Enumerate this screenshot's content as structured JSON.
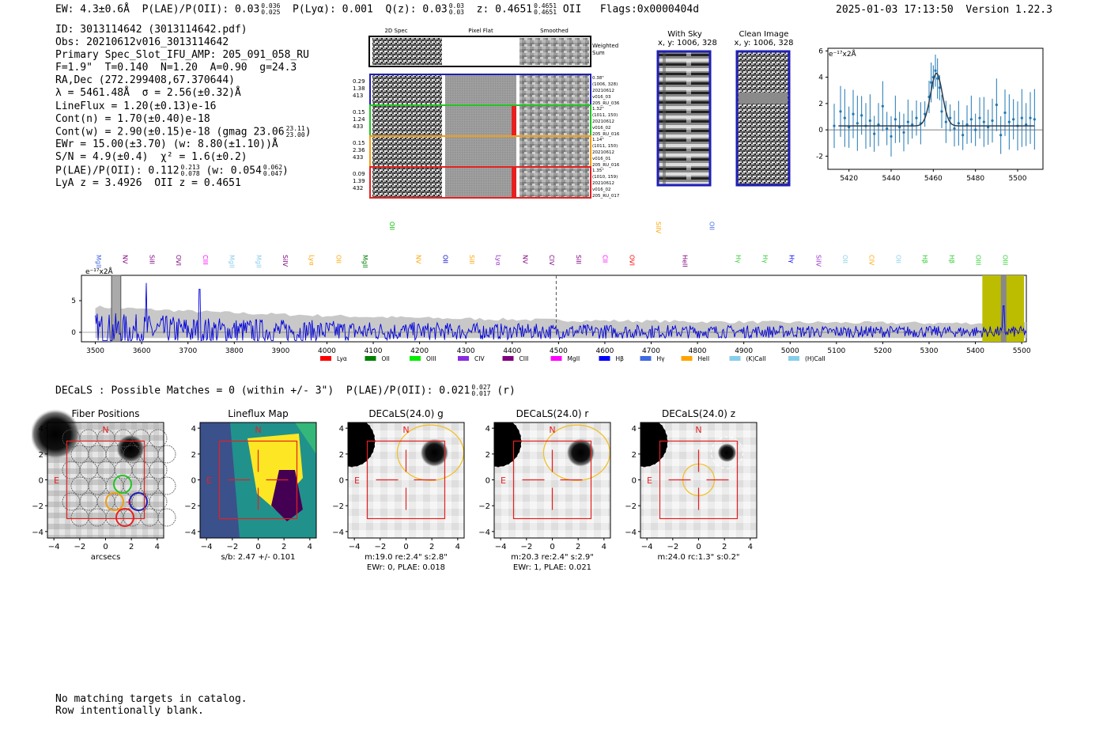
{
  "header": {
    "ew": "EW: 4.3±0.6Å",
    "plae_label": "P(LAE)/P(OII): 0.03",
    "plae_sup": "0.036",
    "plae_sub": "0.025",
    "plya": "P(Lyα): 0.001",
    "qz_label": "Q(z): 0.03",
    "qz_sup": "0.03",
    "qz_sub": "0.03",
    "z_label": "z: 0.4651",
    "z_sup": "0.4651",
    "z_sub": "0.4651",
    "z_line": "OII",
    "flags": "Flags:0x0000404d",
    "timestamp": "2025-01-03 17:13:50",
    "version": "Version 1.22.3"
  },
  "info": {
    "id": "ID: 3013114642 (3013114642.pdf)",
    "obs": "Obs: 20210612v016_3013114642",
    "primary": "Primary Spec_Slot_IFU_AMP: 205_091_058_RU",
    "fwhm": "F=1.9\"  T=0.140  N=1.20  A=0.90  g=24.3",
    "radec": "RA,Dec (272.299408,67.370644)",
    "lambda": "λ = 5461.48Å  σ = 2.56(±0.32)Å",
    "lineflux": "LineFlux = 1.20(±0.13)e-16",
    "contn": "Cont(n) = 1.70(±0.40)e-18",
    "contw": "Cont(w) = 2.90(±0.15)e-18 (gmag 23.06",
    "contw_sup": "23.11",
    "contw_sub": "23.00",
    "contw_end": ")",
    "ewr": "EWr = 15.00(±3.70) (w: 8.80(±1.10))Å",
    "sn": "S/N = 4.9(±0.4)  χ² = 1.6(±0.2)",
    "plae": "P(LAE)/P(OII): 0.112",
    "plae_sup": "0.213",
    "plae_sub": "0.078",
    "plae_w": "(w: 0.054",
    "plae_w_sup": "0.062",
    "plae_w_sub": "0.047",
    "plae_w_end": ")",
    "lya": "LyA z = 3.4926  OII z = 0.4651"
  },
  "cutouts": {
    "col_2d": "2D Spec",
    "col_flat": "Pixel Flat",
    "col_smooth": "Smoothed",
    "weighted": [
      "Weighted",
      "Sum"
    ],
    "rows": [
      {
        "left": [
          "0.29",
          "1.38",
          "413"
        ],
        "right": [
          "0.38\"",
          "(1006, 328)",
          "20210612",
          "v016_03",
          "205_RU_036"
        ],
        "color": "#1f1fb4"
      },
      {
        "left": [
          "0.15",
          "1.24",
          "433"
        ],
        "right": [
          "1.32\"",
          "(1011, 150)",
          "20210612",
          "v016_02",
          "205_RU_016"
        ],
        "color": "#22c422"
      },
      {
        "left": [
          "0.15",
          "2.36",
          "433"
        ],
        "right": [
          "1.14\"",
          "(1011, 150)",
          "20210612",
          "v016_01",
          "205_RU_016"
        ],
        "color": "#f39c12"
      },
      {
        "left": [
          "0.09",
          "1.39",
          "432"
        ],
        "right": [
          "1.35\"",
          "(1010, 159)",
          "20210612",
          "v016_02",
          "205_RU_017"
        ],
        "color": "#e62020"
      }
    ]
  },
  "sky": {
    "with_sky": "With Sky",
    "with_sky_xy": "x, y: 1006, 328",
    "clean": "Clean Image",
    "clean_xy": "x, y: 1006, 328"
  },
  "zoom_plot": {
    "ylabel": "e⁻¹⁷x2Å",
    "yticks": [
      "6",
      "4",
      "2",
      "0",
      "-2"
    ],
    "xticks": [
      "5420",
      "5440",
      "5460",
      "5480",
      "5500"
    ]
  },
  "full_spectrum": {
    "ylabel": "e⁻¹⁷x2Å",
    "yticks": [
      "5",
      "0"
    ],
    "xticks": [
      "3500",
      "3600",
      "3700",
      "3800",
      "3900",
      "4000",
      "4100",
      "4200",
      "4300",
      "4400",
      "4500",
      "4600",
      "4700",
      "4800",
      "4900",
      "5000",
      "5100",
      "5200",
      "5300",
      "5400",
      "5500"
    ],
    "line_labels": [
      {
        "text": "MgII",
        "color": "#4169e1"
      },
      {
        "text": "NV",
        "color": "#800080"
      },
      {
        "text": "SiII",
        "color": "#800080"
      },
      {
        "text": "OVI",
        "color": "#800080"
      },
      {
        "text": "CIII",
        "color": "#ff00ff"
      },
      {
        "text": "MgII",
        "color": "#87ceeb"
      },
      {
        "text": "MgII",
        "color": "#87ceeb"
      },
      {
        "text": "SiIV",
        "color": "#800080"
      },
      {
        "text": "Lyα",
        "color": "#ffa500"
      },
      {
        "text": "OII",
        "color": "#ffa500"
      },
      {
        "text": "MgII",
        "color": "#008000"
      },
      {
        "text": "OII",
        "color": "#00c000"
      },
      {
        "text": "NV",
        "color": "#ffa500"
      },
      {
        "text": "OII",
        "color": "#0000cd"
      },
      {
        "text": "SiII",
        "color": "#ffa500"
      },
      {
        "text": "Lyα",
        "color": "#9932cc"
      },
      {
        "text": "NV",
        "color": "#800080"
      },
      {
        "text": "CIV",
        "color": "#800080"
      },
      {
        "text": "SiII",
        "color": "#800080"
      },
      {
        "text": "CII",
        "color": "#ff00ff"
      },
      {
        "text": "OVI",
        "color": "#ff0000"
      },
      {
        "text": "SiIV",
        "color": "#ffa500"
      },
      {
        "text": "HeII",
        "color": "#800080"
      },
      {
        "text": "OII",
        "color": "#4169e1"
      },
      {
        "text": "Hγ",
        "color": "#32cd32"
      },
      {
        "text": "Hγ",
        "color": "#32cd32"
      },
      {
        "text": "Hγ",
        "color": "#0000ff"
      },
      {
        "text": "SiIV",
        "color": "#9932cc"
      },
      {
        "text": "OII",
        "color": "#87ceeb"
      },
      {
        "text": "CIV",
        "color": "#ffa500"
      },
      {
        "text": "OII",
        "color": "#87ceeb"
      },
      {
        "text": "Hβ",
        "color": "#32cd32"
      },
      {
        "text": "Hβ",
        "color": "#32cd32"
      },
      {
        "text": "OIII",
        "color": "#32cd32"
      },
      {
        "text": "OIII",
        "color": "#32cd32"
      }
    ],
    "legend": [
      {
        "text": "Lyα",
        "color": "#ff0000"
      },
      {
        "text": "OII",
        "color": "#008000"
      },
      {
        "text": "OIII",
        "color": "#00ee00"
      },
      {
        "text": "CIV",
        "color": "#8a2be2"
      },
      {
        "text": "CIII",
        "color": "#800080"
      },
      {
        "text": "MgII",
        "color": "#ff00ff"
      },
      {
        "text": "Hβ",
        "color": "#0000ff"
      },
      {
        "text": "Hγ",
        "color": "#4169e1"
      },
      {
        "text": "HeII",
        "color": "#ffa500"
      },
      {
        "text": "(K)CaII",
        "color": "#87ceeb"
      },
      {
        "text": "(H)CaII",
        "color": "#87ceeb"
      }
    ]
  },
  "decals": {
    "title": "DECaLS : Possible Matches = 0 (within +/- 3\")  P(LAE)/P(OII): 0.021",
    "sup": "0.027",
    "sub": "0.017",
    "band": "(r)",
    "panels": [
      {
        "title": "Fiber Positions",
        "cap1": "arcsecs",
        "cap2": ""
      },
      {
        "title": "Lineflux Map",
        "cap1": "s/b: 2.47 +/- 0.101",
        "cap2": ""
      },
      {
        "title": "DECaLS(24.0) g",
        "cap1": "m:19.0  re:2.4\"  s:2.8\"",
        "cap2": "EWr: 0, PLAE: 0.018"
      },
      {
        "title": "DECaLS(24.0) r",
        "cap1": "m:20.3  re:2.4\"  s:2.9\"",
        "cap2": "EWr: 1, PLAE: 0.021"
      },
      {
        "title": "DECaLS(24.0) z",
        "cap1": "m:24.0 rc:1.3\"  s:0.2\"",
        "cap2": ""
      }
    ],
    "yticks": [
      "4",
      "2",
      "0",
      "−2",
      "−4"
    ],
    "xticks": [
      "−4",
      "−2",
      "0",
      "2",
      "4"
    ],
    "north": "N",
    "east": "E"
  },
  "footer": {
    "line1": "No matching targets in catalog.",
    "line2": "Row intentionally blank."
  },
  "chart_data": [
    {
      "type": "scatter",
      "title": "",
      "xlabel": "",
      "ylabel": "e-17x2Å",
      "xlim": [
        5410,
        5512
      ],
      "ylim": [
        -3,
        6.2
      ],
      "x": [
        5413,
        5416,
        5418,
        5420,
        5422,
        5424,
        5426,
        5428,
        5430,
        5432,
        5434,
        5436,
        5438,
        5440,
        5442,
        5444,
        5446,
        5448,
        5450,
        5452,
        5454,
        5456,
        5458,
        5459,
        5460,
        5461,
        5462,
        5463,
        5464,
        5466,
        5468,
        5470,
        5472,
        5474,
        5476,
        5478,
        5480,
        5482,
        5484,
        5486,
        5488,
        5490,
        5492,
        5494,
        5496,
        5498,
        5500,
        5502,
        5504,
        5506,
        5508
      ],
      "y": [
        0.3,
        1.4,
        0.9,
        0.2,
        1.2,
        0.5,
        1.1,
        0.3,
        0.7,
        -0.3,
        0.4,
        1.8,
        0.1,
        -0.5,
        0.8,
        0.2,
        -0.2,
        0.6,
        0.4,
        0.9,
        0.5,
        1.2,
        2.5,
        3.6,
        4.0,
        4.5,
        3.9,
        3.2,
        1.4,
        0.6,
        0.9,
        0.1,
        0.5,
        -0.4,
        0.4,
        0.8,
        0.0,
        0.9,
        0.6,
        0.2,
        0.7,
        1.9,
        -0.4,
        1.3,
        0.6,
        0.8,
        0.3,
        0.9,
        0.4,
        0.9,
        0.8
      ],
      "fit_peak": 4.0,
      "fit_center": 5461.5
    },
    {
      "type": "line",
      "title": "",
      "xlabel": "",
      "ylabel": "e-17x2Å",
      "xlim": [
        3470,
        5510
      ],
      "ylim": [
        -1.5,
        9
      ],
      "series": [
        {
          "name": "spectrum",
          "color": "#0000dd"
        }
      ],
      "seed_peaks": [
        [
          3610,
          7.8
        ],
        [
          3725,
          6.8
        ],
        [
          5461,
          4.2
        ]
      ],
      "marker_x": 4495
    }
  ]
}
